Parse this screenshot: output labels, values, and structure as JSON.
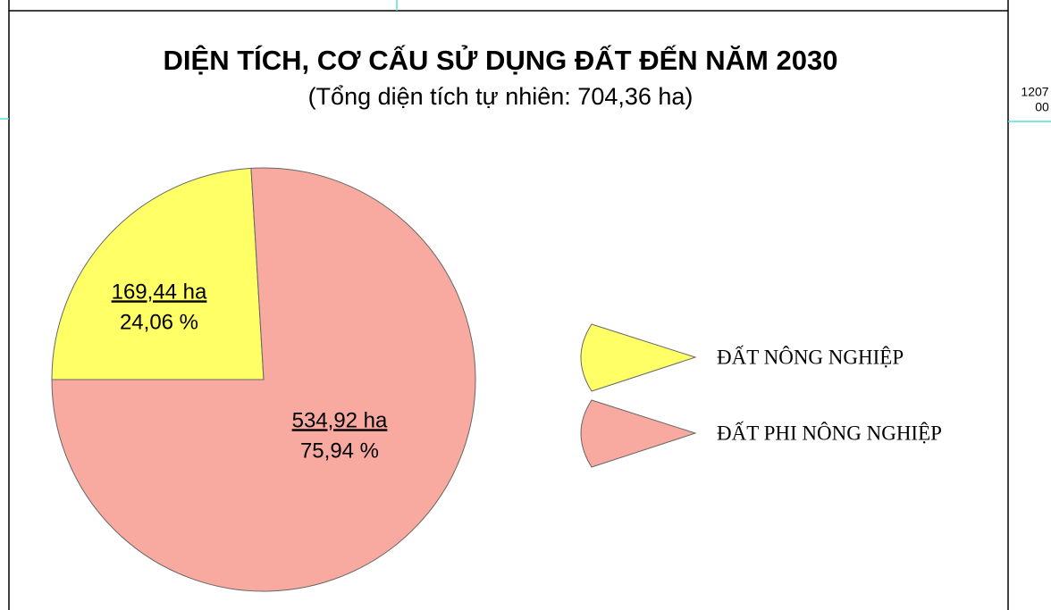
{
  "chart_data": {
    "type": "pie",
    "title": "DIỆN TÍCH, CƠ CẤU SỬ DỤNG ĐẤT ĐẾN  NĂM 2030",
    "subtitle": "(Tổng diện tích tự nhiên: 704,36 ha)",
    "categories": [
      "ĐẤT NÔNG NGHIỆP",
      "ĐẤT PHI NÔNG NGHIỆP"
    ],
    "values": [
      169.44,
      534.92
    ],
    "value_labels": [
      "169,44 ha",
      "534,92 ha"
    ],
    "percentages": [
      24.06,
      75.94
    ],
    "percentage_labels": [
      "24,06 %",
      "75,94 %"
    ],
    "colors": [
      "#ffff66",
      "#f9aaa0"
    ]
  },
  "margin_text": [
    "1207",
    "00"
  ]
}
